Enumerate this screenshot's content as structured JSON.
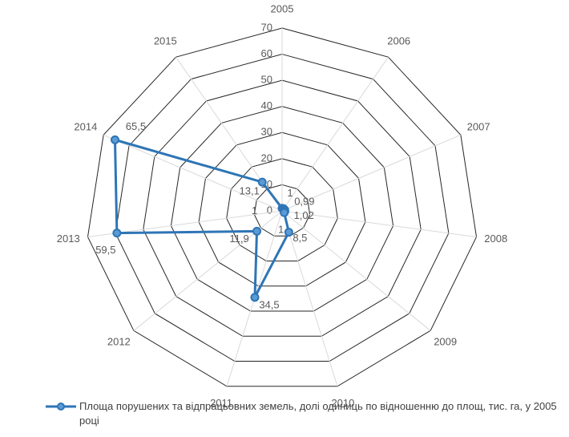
{
  "chart_data": {
    "type": "radar",
    "categories": [
      "2005",
      "2006",
      "2007",
      "2008",
      "2009",
      "2010",
      "2011",
      "2012",
      "2013",
      "2014",
      "2015"
    ],
    "series": [
      {
        "name": "Площа порушених та відпрацьовних земель, долі одиниць по відношенню до площ, тис. га, у 2005 році",
        "color": "#2e75b6",
        "values": [
          1,
          0.99,
          1.02,
          1,
          1,
          8.5,
          34.5,
          11.9,
          59.5,
          65.5,
          13.1
        ],
        "value_labels": [
          "1",
          "0,99",
          "1,02",
          "1",
          "1",
          "8,5",
          "34,5",
          "11,9",
          "59,5",
          "65,5",
          "13,1"
        ]
      }
    ],
    "rlim": [
      0,
      70
    ],
    "rticks": [
      0,
      10,
      20,
      30,
      40,
      50,
      60,
      70
    ],
    "grid": true,
    "legend": "bottom"
  }
}
